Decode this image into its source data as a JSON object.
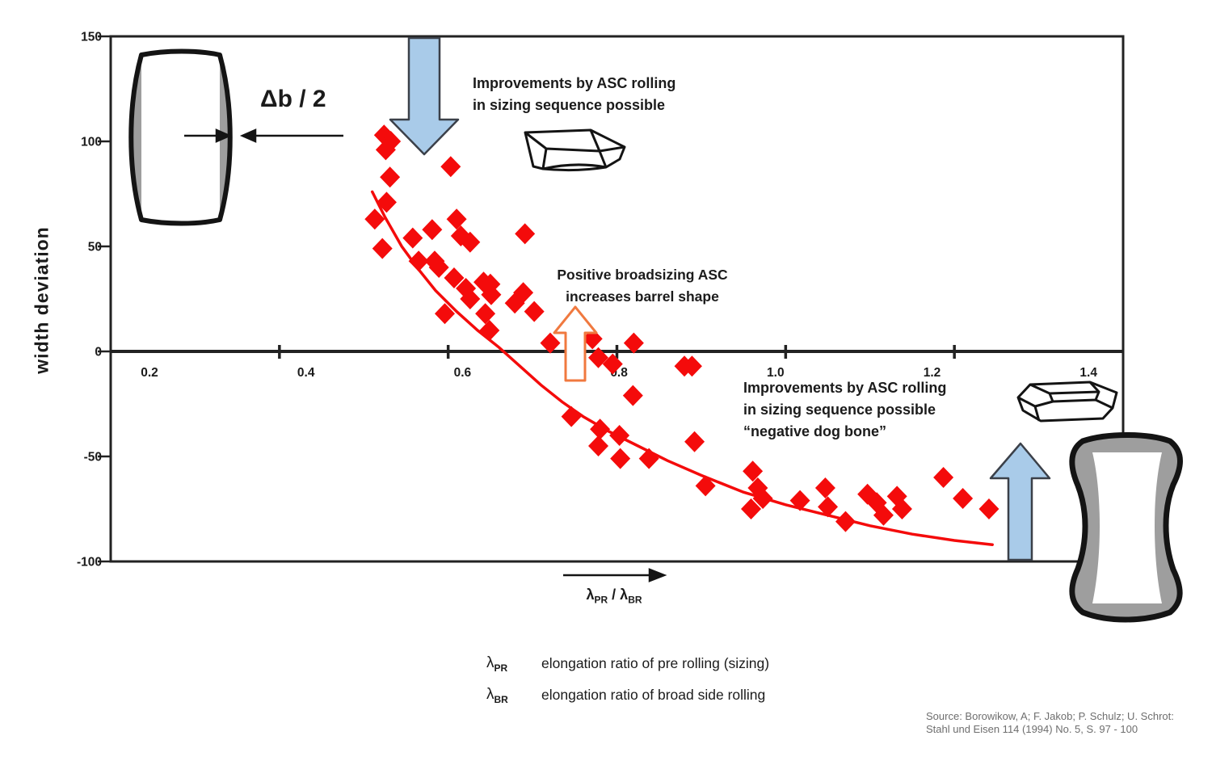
{
  "colors": {
    "accent_red": "#f40b0b",
    "arrow_blue_fill": "#a9cbe9",
    "arrow_blue_stroke": "#3b4049",
    "arrow_orange": "#f0793f",
    "shade_gray": "#9e9e9e",
    "ink": "#1b1b1b"
  },
  "chart": {
    "y_axis_title": "width deviation"
  },
  "chart_data": {
    "type": "scatter",
    "title": "",
    "xlabel": "λPR / λBR",
    "ylabel": "width deviation",
    "xlim": [
      0.2,
      1.4
    ],
    "ylim": [
      -100,
      150
    ],
    "grid": false,
    "marker": "diamond",
    "marker_color": "#f40b0b",
    "x_tick_marks": [
      0.4,
      0.6,
      0.8,
      1.0,
      1.2
    ],
    "x_tick_labels": [
      "0.2",
      "0.4",
      "0.6",
      "0.8",
      "1.0",
      "1.2",
      "1.4"
    ],
    "y_tick_values": [
      150,
      100,
      50,
      0,
      -50,
      -100
    ],
    "y_tick_labels": [
      "150",
      "100",
      "50",
      "0",
      "-50",
      "-100"
    ],
    "points": [
      [
        0.524,
        103
      ],
      [
        0.532,
        100
      ],
      [
        0.526,
        96
      ],
      [
        0.603,
        88
      ],
      [
        0.531,
        83
      ],
      [
        0.527,
        71
      ],
      [
        0.513,
        63
      ],
      [
        0.522,
        49
      ],
      [
        0.558,
        54
      ],
      [
        0.581,
        58
      ],
      [
        0.61,
        63
      ],
      [
        0.615,
        55
      ],
      [
        0.626,
        52
      ],
      [
        0.691,
        56
      ],
      [
        0.565,
        43
      ],
      [
        0.584,
        43
      ],
      [
        0.589,
        40
      ],
      [
        0.607,
        35
      ],
      [
        0.621,
        30
      ],
      [
        0.626,
        25
      ],
      [
        0.642,
        33
      ],
      [
        0.65,
        32
      ],
      [
        0.651,
        27
      ],
      [
        0.679,
        23
      ],
      [
        0.596,
        18
      ],
      [
        0.644,
        18
      ],
      [
        0.649,
        10
      ],
      [
        0.689,
        28
      ],
      [
        0.702,
        19
      ],
      [
        0.721,
        4
      ],
      [
        0.746,
        -31
      ],
      [
        0.771,
        6
      ],
      [
        0.778,
        -3
      ],
      [
        0.795,
        -6
      ],
      [
        0.82,
        4
      ],
      [
        0.819,
        -21
      ],
      [
        0.78,
        -37
      ],
      [
        0.803,
        -40
      ],
      [
        0.778,
        -45
      ],
      [
        0.804,
        -51
      ],
      [
        0.838,
        -51
      ],
      [
        0.88,
        -7
      ],
      [
        0.889,
        -7
      ],
      [
        0.892,
        -43
      ],
      [
        0.905,
        -64
      ],
      [
        0.961,
        -57
      ],
      [
        0.967,
        -65
      ],
      [
        0.973,
        -70
      ],
      [
        0.959,
        -75
      ],
      [
        1.017,
        -71
      ],
      [
        1.047,
        -65
      ],
      [
        1.05,
        -74
      ],
      [
        1.071,
        -81
      ],
      [
        1.097,
        -68
      ],
      [
        1.108,
        -72
      ],
      [
        1.116,
        -78
      ],
      [
        1.132,
        -69
      ],
      [
        1.138,
        -75
      ],
      [
        1.187,
        -60
      ],
      [
        1.21,
        -70
      ],
      [
        1.241,
        -75
      ]
    ],
    "trend_curve": {
      "color": "#f40b0b",
      "points": [
        [
          0.51,
          76
        ],
        [
          0.525,
          64
        ],
        [
          0.545,
          50
        ],
        [
          0.565,
          39
        ],
        [
          0.585,
          29
        ],
        [
          0.61,
          19
        ],
        [
          0.635,
          10
        ],
        [
          0.66,
          2
        ],
        [
          0.685,
          -7
        ],
        [
          0.71,
          -16
        ],
        [
          0.735,
          -24
        ],
        [
          0.76,
          -31
        ],
        [
          0.79,
          -38
        ],
        [
          0.825,
          -45
        ],
        [
          0.86,
          -52
        ],
        [
          0.9,
          -59
        ],
        [
          0.95,
          -67
        ],
        [
          1.0,
          -73
        ],
        [
          1.05,
          -78
        ],
        [
          1.1,
          -83
        ],
        [
          1.15,
          -87
        ],
        [
          1.2,
          -90
        ],
        [
          1.245,
          -92
        ]
      ]
    }
  },
  "annotations": {
    "delta_b": "Δb / 2",
    "top": {
      "line1": "Improvements by ASC rolling",
      "line2": "in sizing sequence possible"
    },
    "middle": {
      "line1": "Positive broadsizing ASC",
      "line2": "increases barrel shape"
    },
    "right": {
      "line1": "Improvements by ASC rolling",
      "line2": "in sizing sequence possible",
      "line3": "“negative dog bone”"
    }
  },
  "x_axis_label": {
    "lambda1": "λ",
    "sub_pr": "PR",
    "separator": " / ",
    "lambda2": "λ",
    "sub_br": "BR"
  },
  "legend": {
    "rows": [
      {
        "symbol": "λ",
        "sub": "PR",
        "text": "elongation ratio of pre rolling (sizing)"
      },
      {
        "symbol": "λ",
        "sub": "BR",
        "text": "elongation ratio of broad side rolling"
      }
    ]
  },
  "source": {
    "line1": "Source: Borowikow, A; F. Jakob; P. Schulz; U. Schrot:",
    "line2": "Stahl und Eisen 114 (1994) No. 5, S. 97 - 100"
  }
}
